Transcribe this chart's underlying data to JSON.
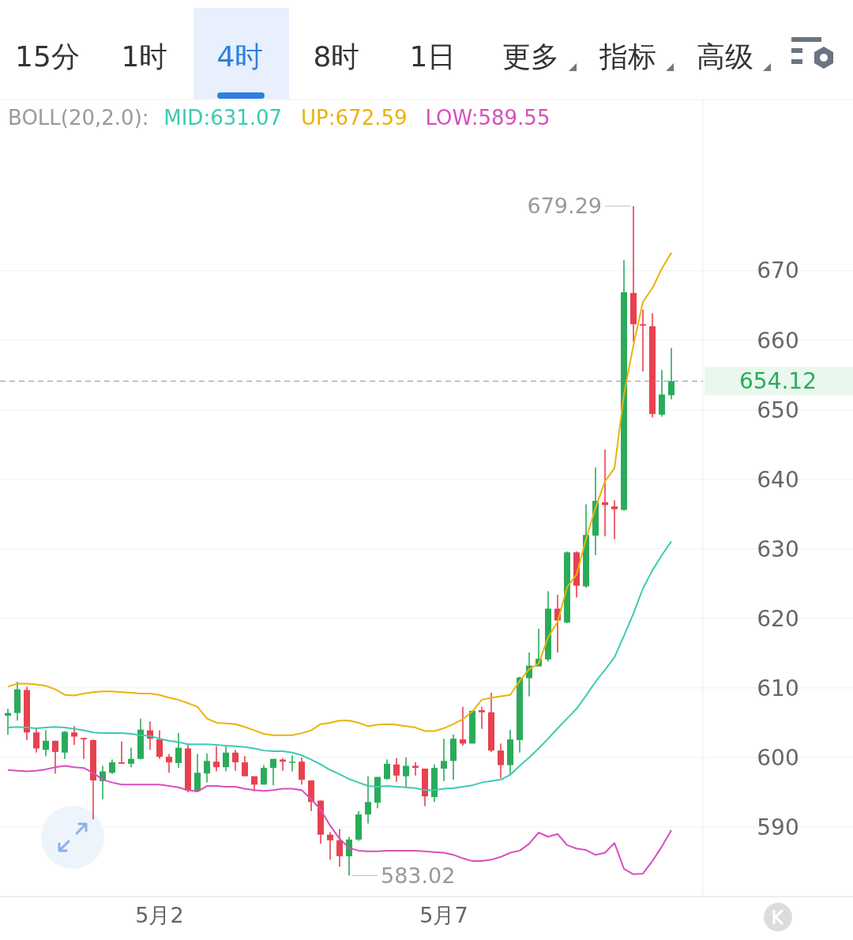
{
  "chart_data": {
    "type": "candlestick",
    "legend_title": "BOLL(20,2.0):",
    "legend": "top",
    "grid": "y",
    "categories": [
      null,
      null,
      null,
      null,
      null,
      null,
      null,
      null,
      null,
      null,
      null,
      null,
      null,
      null,
      null,
      null,
      "5月2",
      null,
      null,
      null,
      null,
      null,
      null,
      null,
      null,
      null,
      null,
      null,
      null,
      null,
      null,
      null,
      null,
      null,
      null,
      null,
      null,
      null,
      null,
      null,
      null,
      null,
      null,
      null,
      null,
      null,
      "5月7",
      null,
      null,
      null,
      null,
      null,
      null,
      null,
      null,
      null,
      null,
      null,
      null,
      null,
      null,
      null,
      null,
      null,
      null,
      null,
      null,
      null,
      null,
      null,
      null
    ],
    "ohlc": [
      [
        606.0,
        607.0,
        603.3,
        606.4
      ],
      [
        606.4,
        610.9,
        605.3,
        609.8
      ],
      [
        609.7,
        610.2,
        602.5,
        603.6
      ],
      [
        603.6,
        604.2,
        600.7,
        601.3
      ],
      [
        601.1,
        603.9,
        600.2,
        602.4
      ],
      [
        602.4,
        602.4,
        597.7,
        600.8
      ],
      [
        600.7,
        603.8,
        599.8,
        603.7
      ],
      [
        603.6,
        604.5,
        601.8,
        603.0
      ],
      [
        602.8,
        602.8,
        599.8,
        602.6
      ],
      [
        602.5,
        602.6,
        591.1,
        596.7
      ],
      [
        596.6,
        598.8,
        594.0,
        598.0
      ],
      [
        597.8,
        599.7,
        597.6,
        599.3
      ],
      [
        599.3,
        602.3,
        599.1,
        599.1
      ],
      [
        599.1,
        601.4,
        598.6,
        599.8
      ],
      [
        599.8,
        605.6,
        599.7,
        604.0
      ],
      [
        603.9,
        605.2,
        601.1,
        602.7
      ],
      [
        602.6,
        603.9,
        599.8,
        600.1
      ],
      [
        600.1,
        600.5,
        597.8,
        599.3
      ],
      [
        599.2,
        603.5,
        598.5,
        601.4
      ],
      [
        601.3,
        601.9,
        595.0,
        595.2
      ],
      [
        595.2,
        600.5,
        595.2,
        597.8
      ],
      [
        597.7,
        600.6,
        596.4,
        599.5
      ],
      [
        599.4,
        601.6,
        598.0,
        598.6
      ],
      [
        598.6,
        601.6,
        598.0,
        600.7
      ],
      [
        600.7,
        601.1,
        598.1,
        599.3
      ],
      [
        599.3,
        600.2,
        597.3,
        597.3
      ],
      [
        597.3,
        597.3,
        595.1,
        596.1
      ],
      [
        596.1,
        598.9,
        596.1,
        598.5
      ],
      [
        598.5,
        599.8,
        596.0,
        599.8
      ],
      [
        599.7,
        599.9,
        598.1,
        599.4
      ],
      [
        599.3,
        600.3,
        598.0,
        599.4
      ],
      [
        599.4,
        600.0,
        596.1,
        596.8
      ],
      [
        596.7,
        596.7,
        592.3,
        593.6
      ],
      [
        593.8,
        593.8,
        587.6,
        588.9
      ],
      [
        588.9,
        589.3,
        585.3,
        588.1
      ],
      [
        588.1,
        589.7,
        584.3,
        585.8
      ],
      [
        585.8,
        588.6,
        583.02,
        588.2
      ],
      [
        588.2,
        592.3,
        588.0,
        591.8
      ],
      [
        591.8,
        597.3,
        590.5,
        593.6
      ],
      [
        593.5,
        597.2,
        592.7,
        597.2
      ],
      [
        596.9,
        599.7,
        596.8,
        599.1
      ],
      [
        599.0,
        599.9,
        596.5,
        597.4
      ],
      [
        597.3,
        600.0,
        595.8,
        598.8
      ],
      [
        598.8,
        599.3,
        597.4,
        598.5
      ],
      [
        598.4,
        598.4,
        593.0,
        594.4
      ],
      [
        594.3,
        599.0,
        593.6,
        598.5
      ],
      [
        598.4,
        602.7,
        596.6,
        599.5
      ],
      [
        599.5,
        603.3,
        596.8,
        602.7
      ],
      [
        602.6,
        607.3,
        601.7,
        602.0
      ],
      [
        602.0,
        606.8,
        602.0,
        606.7
      ],
      [
        606.8,
        607.3,
        604.1,
        606.5
      ],
      [
        606.5,
        609.3,
        600.8,
        601.0
      ],
      [
        601.0,
        602.0,
        597.0,
        598.9
      ],
      [
        598.9,
        604.0,
        597.6,
        602.6
      ],
      [
        602.5,
        611.6,
        600.7,
        611.5
      ],
      [
        611.4,
        615.1,
        608.8,
        613.2
      ],
      [
        613.1,
        618.5,
        613.1,
        614.2
      ],
      [
        614.1,
        623.9,
        613.8,
        621.4
      ],
      [
        621.4,
        623.4,
        615.1,
        619.7
      ],
      [
        619.4,
        629.6,
        619.3,
        629.5
      ],
      [
        629.5,
        629.6,
        623.0,
        624.7
      ],
      [
        624.6,
        636.4,
        624.4,
        632.0
      ],
      [
        631.9,
        641.7,
        629.1,
        636.9
      ],
      [
        636.7,
        644.3,
        631.8,
        636.3
      ],
      [
        636.1,
        637.0,
        631.4,
        635.7
      ],
      [
        635.6,
        671.5,
        635.5,
        666.9
      ],
      [
        666.8,
        679.29,
        659.8,
        662.3
      ],
      [
        662.3,
        664.4,
        655.5,
        662.1
      ],
      [
        662.0,
        663.9,
        648.9,
        649.4
      ],
      [
        649.3,
        655.7,
        649.0,
        652.2
      ],
      [
        652.1,
        658.9,
        651.5,
        654.12
      ]
    ],
    "series": [
      {
        "type": "line",
        "name": "MID:631.07",
        "color": "#3ec9b3",
        "values": [
          604.3,
          604.4,
          604.3,
          604.2,
          604.3,
          604.4,
          604.3,
          604.1,
          603.9,
          603.6,
          603.5,
          603.5,
          603.5,
          603.4,
          603.2,
          603.1,
          602.7,
          602.4,
          602.2,
          601.9,
          601.9,
          601.9,
          601.8,
          601.7,
          601.6,
          601.5,
          601.3,
          601.0,
          600.9,
          600.9,
          600.7,
          600.3,
          599.7,
          599.0,
          598.2,
          597.6,
          596.9,
          596.4,
          595.9,
          595.8,
          595.9,
          595.8,
          595.7,
          595.6,
          595.3,
          595.3,
          595.5,
          595.6,
          595.8,
          596.0,
          596.4,
          596.6,
          596.8,
          597.5,
          598.8,
          600.0,
          601.3,
          602.7,
          604.2,
          605.6,
          607.0,
          608.9,
          610.9,
          612.6,
          614.4,
          617.5,
          620.7,
          624.3,
          626.9,
          629.1,
          631.07
        ]
      },
      {
        "type": "line",
        "name": "UP:672.59",
        "color": "#eab308",
        "values": [
          610.2,
          610.6,
          610.6,
          610.5,
          610.3,
          609.8,
          609.0,
          608.9,
          609.2,
          609.4,
          609.5,
          609.5,
          609.4,
          609.3,
          609.2,
          609.2,
          609.0,
          608.6,
          608.3,
          607.8,
          607.3,
          605.6,
          605.0,
          604.9,
          604.8,
          604.4,
          603.9,
          603.4,
          603.2,
          603.2,
          603.2,
          603.5,
          603.9,
          604.8,
          605.0,
          605.3,
          605.3,
          605.0,
          604.5,
          604.7,
          604.8,
          604.7,
          604.5,
          604.3,
          603.8,
          603.8,
          604.2,
          604.8,
          605.5,
          606.6,
          608.3,
          608.6,
          608.8,
          609.0,
          611.0,
          612.7,
          613.5,
          617.3,
          619.5,
          624.5,
          626.3,
          631.4,
          635.9,
          639.7,
          641.6,
          652.2,
          659.3,
          665.5,
          667.5,
          670.3,
          672.59
        ]
      },
      {
        "type": "line",
        "name": "LOW:589.55",
        "color": "#d94fbc",
        "values": [
          598.2,
          598.1,
          598.0,
          598.1,
          598.3,
          598.6,
          598.8,
          598.6,
          598.5,
          597.8,
          596.8,
          596.4,
          596.1,
          596.1,
          596.1,
          596.1,
          596.1,
          595.9,
          595.7,
          595.3,
          595.1,
          595.9,
          595.9,
          595.8,
          595.8,
          595.5,
          595.3,
          595.2,
          595.3,
          595.5,
          595.5,
          595.3,
          594.0,
          592.5,
          590.2,
          588.3,
          587.0,
          586.6,
          586.5,
          586.5,
          586.6,
          586.6,
          586.6,
          586.6,
          586.5,
          586.4,
          586.3,
          586.0,
          585.5,
          585.1,
          585.1,
          585.3,
          585.7,
          586.3,
          586.6,
          587.6,
          589.2,
          588.6,
          589.0,
          587.4,
          586.9,
          586.7,
          586.0,
          586.3,
          587.7,
          584.0,
          583.2,
          583.3,
          585.1,
          587.2,
          589.55
        ]
      }
    ],
    "ylim": [
      580,
      694.5
    ],
    "yticks": [
      590,
      600,
      610,
      620,
      630,
      640,
      650,
      660,
      670
    ],
    "ref_lines": [
      {
        "axis": "y",
        "value": 654.12,
        "label": "654.12",
        "color": "#999999",
        "line_style": "dashed"
      }
    ],
    "annotations": [
      "15分",
      "1时",
      "4时",
      "8时",
      "1日",
      "更多",
      "指标",
      "高级",
      "679.29",
      "583.02"
    ]
  }
}
